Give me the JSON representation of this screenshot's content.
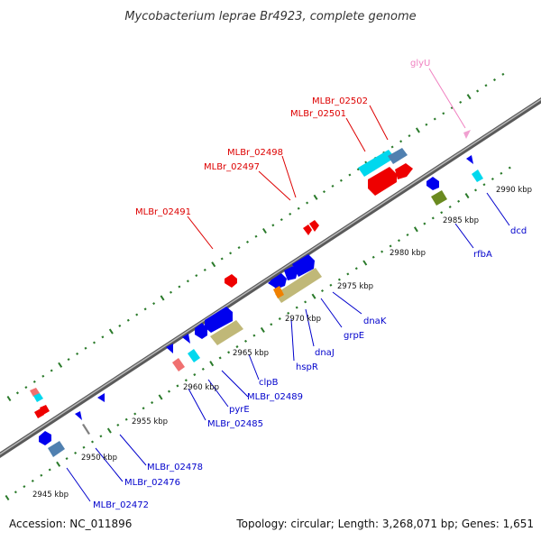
{
  "title": "Mycobacterium leprae Br4923, complete genome",
  "accession": "Accession: NC_011896",
  "summary": "Topology: circular; Length: 3,268,071 bp; Genes: 1,651",
  "colors": {
    "backbone": "#8a8a8a",
    "tick_marks": "#2a7a2a",
    "forward_label": "#dd0000",
    "reverse_label": "#0000cc",
    "trna_label": "#f080c0",
    "cds_red": "#ee0000",
    "cds_blue": "#0000ee",
    "cds_cyan": "#00d8ee",
    "cds_khaki": "#c0b878",
    "cds_olive": "#6a8a20",
    "cds_steel": "#5080b0",
    "cds_orange": "#f08000",
    "cds_pink": "#f07070",
    "trna_pink": "#f0a0d0"
  },
  "ticks": [
    "2945 kbp",
    "2950 kbp",
    "2955 kbp",
    "2960 kbp",
    "2965 kbp",
    "2970 kbp",
    "2975 kbp",
    "2980 kbp",
    "2985 kbp",
    "2990 kbp"
  ],
  "forward_labels": [
    "MLBr_02491",
    "MLBr_02497",
    "MLBr_02498",
    "MLBr_02501",
    "MLBr_02502"
  ],
  "trna_labels": [
    "glyU"
  ],
  "reverse_labels": [
    "MLBr_02472",
    "MLBr_02476",
    "MLBr_02478",
    "MLBr_02485",
    "pyrE",
    "MLBr_02489",
    "clpB",
    "hspR",
    "dnaJ",
    "grpE",
    "dnaK",
    "rfbA",
    "dcd"
  ]
}
